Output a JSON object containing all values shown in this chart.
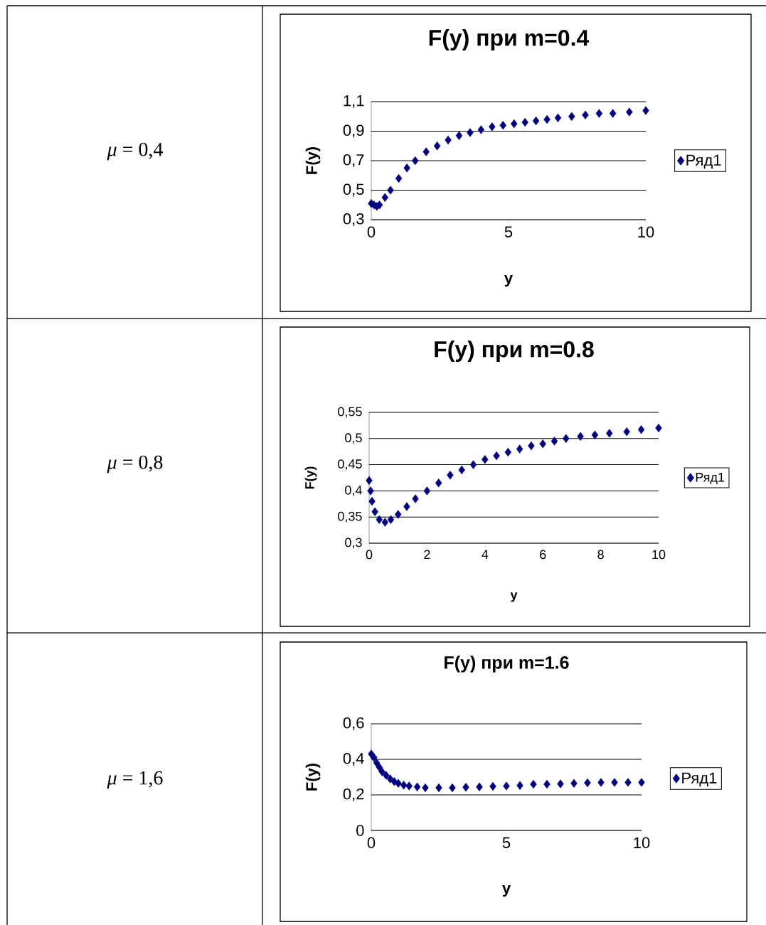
{
  "chart_data": [
    {
      "type": "scatter",
      "title": "F(y) при m=0.4",
      "xlabel": "y",
      "ylabel": "F(y)",
      "annotations": [
        "*μ* = 0,4"
      ],
      "xlim": [
        0,
        10
      ],
      "xticks": [
        0,
        5,
        10
      ],
      "ylim": [
        0.3,
        1.1
      ],
      "yticks": [
        {
          "value": 0.3,
          "label": "0,3"
        },
        {
          "value": 0.5,
          "label": "0,5"
        },
        {
          "value": 0.7,
          "label": "0,7"
        },
        {
          "value": 0.9,
          "label": "0,9"
        },
        {
          "value": 1.1,
          "label": "1,1"
        }
      ],
      "grid": "y",
      "legend": "right",
      "marker": "diamond",
      "x": [
        0,
        0.1,
        0.2,
        0.3,
        0.5,
        0.7,
        1.0,
        1.3,
        1.6,
        2.0,
        2.4,
        2.8,
        3.2,
        3.6,
        4.0,
        4.4,
        4.8,
        5.2,
        5.6,
        6.0,
        6.4,
        6.8,
        7.3,
        7.8,
        8.3,
        8.8,
        9.4,
        10
      ],
      "series": [
        {
          "name": "Ряд1",
          "color": "#000080",
          "values": [
            0.41,
            0.4,
            0.39,
            0.4,
            0.45,
            0.5,
            0.58,
            0.65,
            0.7,
            0.76,
            0.8,
            0.84,
            0.87,
            0.89,
            0.91,
            0.93,
            0.94,
            0.95,
            0.96,
            0.97,
            0.98,
            0.99,
            1.0,
            1.01,
            1.02,
            1.02,
            1.03,
            1.04
          ]
        }
      ]
    },
    {
      "type": "scatter",
      "title": "F(y) при m=0.8",
      "xlabel": "y",
      "ylabel": "F(y)",
      "annotations": [
        "*μ* = 0,8"
      ],
      "xlim": [
        0,
        10
      ],
      "xticks": [
        0,
        2,
        4,
        6,
        8,
        10
      ],
      "ylim": [
        0.3,
        0.55
      ],
      "yticks": [
        {
          "value": 0.3,
          "label": "0,3"
        },
        {
          "value": 0.35,
          "label": "0,35"
        },
        {
          "value": 0.4,
          "label": "0,4"
        },
        {
          "value": 0.45,
          "label": "0,45"
        },
        {
          "value": 0.5,
          "label": "0,5"
        },
        {
          "value": 0.55,
          "label": "0,55"
        }
      ],
      "grid": "y",
      "legend": "right",
      "marker": "diamond",
      "x": [
        0,
        0.05,
        0.1,
        0.2,
        0.35,
        0.55,
        0.75,
        1.0,
        1.3,
        1.6,
        2.0,
        2.4,
        2.8,
        3.2,
        3.6,
        4.0,
        4.4,
        4.8,
        5.2,
        5.6,
        6.0,
        6.4,
        6.8,
        7.3,
        7.8,
        8.3,
        8.9,
        9.4,
        10
      ],
      "series": [
        {
          "name": "Ряд1",
          "color": "#000080",
          "values": [
            0.42,
            0.4,
            0.38,
            0.36,
            0.345,
            0.34,
            0.345,
            0.355,
            0.37,
            0.385,
            0.4,
            0.415,
            0.43,
            0.44,
            0.45,
            0.46,
            0.467,
            0.474,
            0.48,
            0.486,
            0.49,
            0.495,
            0.5,
            0.504,
            0.507,
            0.51,
            0.513,
            0.517,
            0.52
          ]
        }
      ]
    },
    {
      "type": "scatter",
      "title": "F(y) при m=1.6",
      "xlabel": "y",
      "ylabel": "F(y)",
      "annotations": [
        "*μ* = 1,6"
      ],
      "xlim": [
        0,
        10
      ],
      "xticks": [
        0,
        5,
        10
      ],
      "ylim": [
        0,
        0.6
      ],
      "yticks": [
        0,
        {
          "value": 0.2,
          "label": "0,2"
        },
        {
          "value": 0.4,
          "label": "0,4"
        },
        {
          "value": 0.6,
          "label": "0,6"
        }
      ],
      "grid": "y",
      "legend": "right",
      "marker": "diamond",
      "x": [
        0,
        0.1,
        0.2,
        0.3,
        0.4,
        0.55,
        0.7,
        0.85,
        1.0,
        1.2,
        1.4,
        1.7,
        2.0,
        2.5,
        3.0,
        3.5,
        4.0,
        4.5,
        5.0,
        5.5,
        6.0,
        6.5,
        7.0,
        7.5,
        8.0,
        8.5,
        9.0,
        9.5,
        10
      ],
      "series": [
        {
          "name": "Ряд1",
          "color": "#000080",
          "values": [
            0.43,
            0.41,
            0.38,
            0.355,
            0.33,
            0.31,
            0.29,
            0.275,
            0.265,
            0.255,
            0.25,
            0.245,
            0.24,
            0.24,
            0.24,
            0.243,
            0.245,
            0.248,
            0.25,
            0.253,
            0.26,
            0.26,
            0.262,
            0.265,
            0.268,
            0.27,
            0.27,
            0.27,
            0.27
          ]
        }
      ]
    }
  ]
}
